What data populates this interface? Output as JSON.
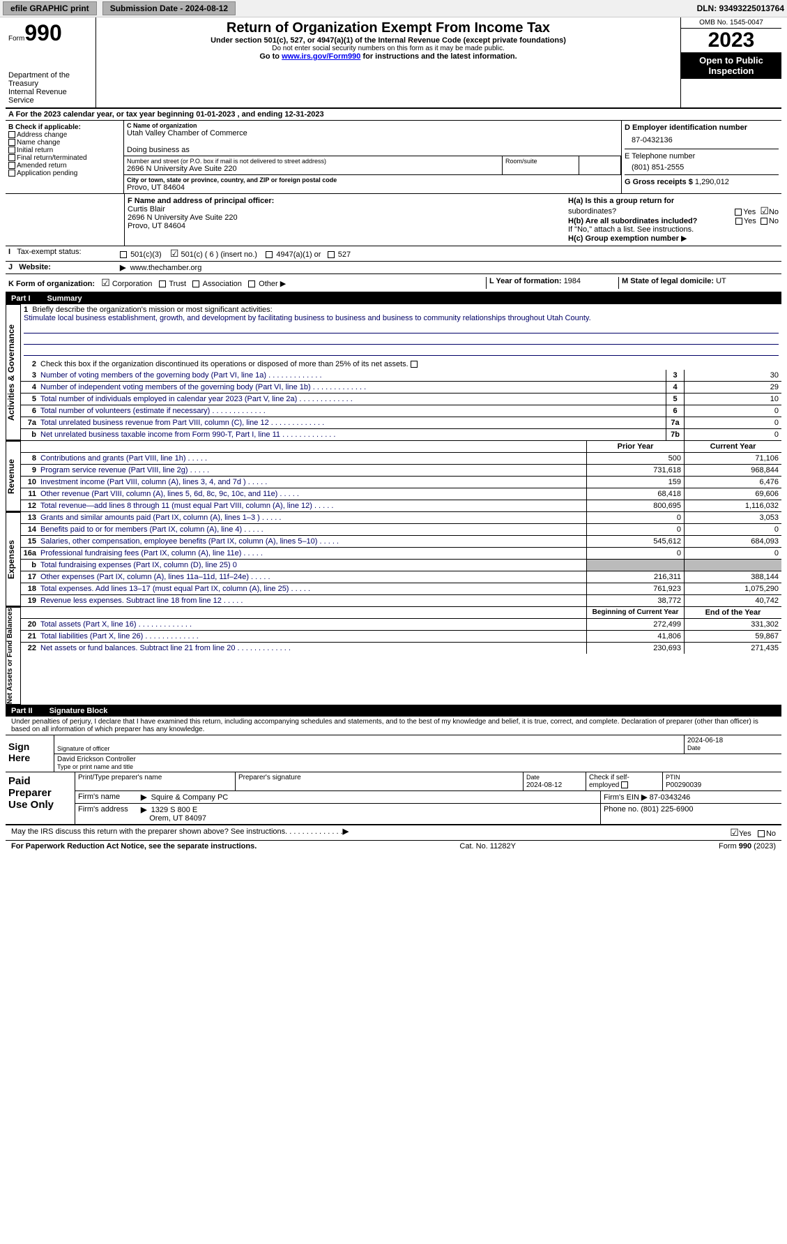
{
  "topbar": {
    "efile": "efile GRAPHIC print",
    "submission": "Submission Date - 2024-08-12",
    "dln": "DLN: 93493225013764"
  },
  "header": {
    "form_label": "Form",
    "form_num": "990",
    "dept": "Department of the Treasury",
    "irs": "Internal Revenue Service",
    "title": "Return of Organization Exempt From Income Tax",
    "sub1": "Under section 501(c), 527, or 4947(a)(1) of the Internal Revenue Code (except private foundations)",
    "sub2": "Do not enter social security numbers on this form as it may be made public.",
    "goto": "Go to ",
    "goto_link": "www.irs.gov/Form990",
    "goto_after": " for instructions and the latest information.",
    "omb": "OMB No. 1545-0047",
    "year": "2023",
    "open": "Open to Public Inspection"
  },
  "period": {
    "text": "For the 2023 calendar year, or tax year beginning 01-01-2023   , and ending 12-31-2023"
  },
  "section_b": {
    "label": "B Check if applicable:",
    "opts": [
      "Address change",
      "Name change",
      "Initial return",
      "Final return/terminated",
      "Amended return",
      "Application pending"
    ]
  },
  "section_c": {
    "name_lbl": "C Name of organization",
    "name": "Utah Valley Chamber of Commerce",
    "dba_lbl": "Doing business as",
    "addr_lbl": "Number and street (or P.O. box if mail is not delivered to street address)",
    "room_lbl": "Room/suite",
    "addr": "2696 N University Ave Suite 220",
    "city_lbl": "City or town, state or province, country, and ZIP or foreign postal code",
    "city": "Provo, UT  84604"
  },
  "section_d": {
    "ein_lbl": "D Employer identification number",
    "ein": "87-0432136",
    "tel_lbl": "E Telephone number",
    "tel": "(801) 851-2555",
    "gross_lbl": "G Gross receipts $",
    "gross": "1,290,012"
  },
  "section_f": {
    "lbl": "F  Name and address of principal officer:",
    "name": "Curtis Blair",
    "addr": "2696 N University Ave Suite 220",
    "city": "Provo, UT  84604"
  },
  "section_h": {
    "ha": "H(a)  Is this a group return for",
    "ha2": "subordinates?",
    "hb": "H(b)  Are all subordinates included?",
    "hb_note": "If \"No,\" attach a list. See instructions.",
    "hc": "H(c)  Group exemption number",
    "yes": "Yes",
    "no": "No"
  },
  "section_i": {
    "lbl": "Tax-exempt status:",
    "o1": "501(c)(3)",
    "o2": "501(c) ( 6 ) (insert no.)",
    "o3": "4947(a)(1) or",
    "o4": "527"
  },
  "section_j": {
    "lbl": "Website:",
    "val": "www.thechamber.org"
  },
  "section_k": {
    "lbl": "K Form of organization:",
    "opts": [
      "Corporation",
      "Trust",
      "Association",
      "Other"
    ],
    "l_lbl": "L Year of formation: ",
    "l_val": "1984",
    "m_lbl": "M State of legal domicile: ",
    "m_val": "UT"
  },
  "part1": {
    "num": "Part I",
    "title": "Summary",
    "tab_ag": "Activities & Governance",
    "tab_rev": "Revenue",
    "tab_exp": "Expenses",
    "tab_net": "Net Assets or Fund Balances",
    "line1_lbl": "Briefly describe the organization's mission or most significant activities:",
    "line1_val": "Stimulate local business establishment, growth, and development by facilitating business to business and business to community relationships throughout Utah County.",
    "line2": "Check this box           if the organization discontinued its operations or disposed of more than 25% of its net assets.",
    "lines": [
      {
        "n": "3",
        "d": "Number of voting members of the governing body (Part VI, line 1a)",
        "b": "3",
        "v": "30"
      },
      {
        "n": "4",
        "d": "Number of independent voting members of the governing body (Part VI, line 1b)",
        "b": "4",
        "v": "29"
      },
      {
        "n": "5",
        "d": "Total number of individuals employed in calendar year 2023 (Part V, line 2a)",
        "b": "5",
        "v": "10"
      },
      {
        "n": "6",
        "d": "Total number of volunteers (estimate if necessary)",
        "b": "6",
        "v": "0"
      },
      {
        "n": "7a",
        "d": "Total unrelated business revenue from Part VIII, column (C), line 12",
        "b": "7a",
        "v": "0"
      },
      {
        "n": "b",
        "d": "Net unrelated business taxable income from Form 990-T, Part I, line 11",
        "b": "7b",
        "v": "0"
      }
    ],
    "hdr_prior": "Prior Year",
    "hdr_curr": "Current Year",
    "rev_lines": [
      {
        "n": "8",
        "d": "Contributions and grants (Part VIII, line 1h)",
        "p": "500",
        "c": "71,106"
      },
      {
        "n": "9",
        "d": "Program service revenue (Part VIII, line 2g)",
        "p": "731,618",
        "c": "968,844"
      },
      {
        "n": "10",
        "d": "Investment income (Part VIII, column (A), lines 3, 4, and 7d )",
        "p": "159",
        "c": "6,476"
      },
      {
        "n": "11",
        "d": "Other revenue (Part VIII, column (A), lines 5, 6d, 8c, 9c, 10c, and 11e)",
        "p": "68,418",
        "c": "69,606"
      },
      {
        "n": "12",
        "d": "Total revenue—add lines 8 through 11 (must equal Part VIII, column (A), line 12)",
        "p": "800,695",
        "c": "1,116,032"
      }
    ],
    "exp_lines": [
      {
        "n": "13",
        "d": "Grants and similar amounts paid (Part IX, column (A), lines 1–3 )",
        "p": "0",
        "c": "3,053"
      },
      {
        "n": "14",
        "d": "Benefits paid to or for members (Part IX, column (A), line 4)",
        "p": "0",
        "c": "0"
      },
      {
        "n": "15",
        "d": "Salaries, other compensation, employee benefits (Part IX, column (A), lines 5–10)",
        "p": "545,612",
        "c": "684,093"
      },
      {
        "n": "16a",
        "d": "Professional fundraising fees (Part IX, column (A), line 11e)",
        "p": "0",
        "c": "0"
      },
      {
        "n": "b",
        "d": "Total fundraising expenses (Part IX, column (D), line 25) 0",
        "p": "",
        "c": "",
        "grey": true
      },
      {
        "n": "17",
        "d": "Other expenses (Part IX, column (A), lines 11a–11d, 11f–24e)",
        "p": "216,311",
        "c": "388,144"
      },
      {
        "n": "18",
        "d": "Total expenses. Add lines 13–17 (must equal Part IX, column (A), line 25)",
        "p": "761,923",
        "c": "1,075,290"
      },
      {
        "n": "19",
        "d": "Revenue less expenses. Subtract line 18 from line 12",
        "p": "38,772",
        "c": "40,742"
      }
    ],
    "hdr_begin": "Beginning of Current Year",
    "hdr_end": "End of the Year",
    "net_lines": [
      {
        "n": "20",
        "d": "Total assets (Part X, line 16)",
        "p": "272,499",
        "c": "331,302"
      },
      {
        "n": "21",
        "d": "Total liabilities (Part X, line 26)",
        "p": "41,806",
        "c": "59,867"
      },
      {
        "n": "22",
        "d": "Net assets or fund balances. Subtract line 21 from line 20",
        "p": "230,693",
        "c": "271,435"
      }
    ]
  },
  "part2": {
    "num": "Part II",
    "title": "Signature Block",
    "decl": "Under penalties of perjury, I declare that I have examined this return, including accompanying schedules and statements, and to the best of my knowledge and belief, it is true, correct, and complete. Declaration of preparer (other than officer) is based on all information of which preparer has any knowledge.",
    "sign_here": "Sign Here",
    "sig_lbl": "Signature of officer",
    "sig_date": "2024-06-18",
    "sig_name": "David Erickson  Controller",
    "sig_name_lbl": "Type or print name and title",
    "date_lbl": "Date",
    "paid": "Paid Preparer Use Only",
    "prep_name_lbl": "Print/Type preparer's name",
    "prep_sig_lbl": "Preparer's signature",
    "prep_date": "2024-08-12",
    "prep_check": "Check          if self-employed",
    "ptin_lbl": "PTIN",
    "ptin": "P00290039",
    "firm_name_lbl": "Firm's name",
    "firm_name": "Squire & Company PC",
    "firm_ein_lbl": "Firm's EIN",
    "firm_ein": "87-0343246",
    "firm_addr_lbl": "Firm's address",
    "firm_addr": "1329 S 800 E",
    "firm_city": "Orem, UT  84097",
    "phone_lbl": "Phone no.",
    "phone": "(801) 225-6900",
    "discuss": "May the IRS discuss this return with the preparer shown above? See instructions."
  },
  "footer": {
    "l": "For Paperwork Reduction Act Notice, see the separate instructions.",
    "m": "Cat. No. 11282Y",
    "r": "Form 990 (2023)"
  },
  "common": {
    "yes": "Yes",
    "no": "No",
    "arrow": "▶"
  }
}
